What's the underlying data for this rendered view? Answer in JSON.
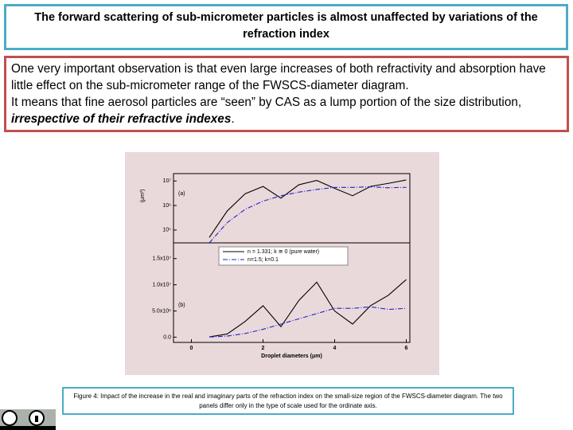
{
  "header": {
    "title": "The forward scattering of sub-micrometer particles is almost unaffected by variations of the refraction index"
  },
  "body": {
    "line1": "One very important observation is that even large increases of both refractivity and absorption have little effect on the sub-micrometer range of the FWSCS-diameter diagram.",
    "line2": "It means that fine aerosol particles are “seen” by CAS as a lump portion of the size distribution,",
    "emphasis": "irrespective of their refractive indexes",
    "end": "."
  },
  "figure": {
    "chart_data": {
      "type": "line",
      "x_label": "Droplet diameters (μm)",
      "y_label": "(μm²)",
      "x": [
        0.5,
        1,
        1.5,
        2,
        2.5,
        3,
        3.5,
        4,
        4.5,
        5,
        5.5,
        6
      ],
      "xlim": [
        -0.5,
        6.1
      ],
      "xticks": [
        0,
        2,
        4,
        6
      ],
      "series": [
        {
          "name": "n = 1.331; k ≅ 0 (pure water)",
          "color": "#000000",
          "dash": "none",
          "values": [
            50000,
            600000,
            3000000,
            6000000,
            2000000,
            7000000,
            10500000,
            5000000,
            2500000,
            6000000,
            8000000,
            11000000
          ]
        },
        {
          "name": "n=1.5; k=0.1",
          "color": "#2222cc",
          "dash": "6 2 1 2",
          "values": [
            30000,
            200000,
            700000,
            1500000,
            2500000,
            3500000,
            4500000,
            5500000,
            5500000,
            5800000,
            5300000,
            5500000
          ]
        }
      ],
      "panels": [
        {
          "label": "(a)",
          "log_scale": true,
          "ylim": [
            30000,
            20000000
          ],
          "yticks": [
            {
              "value": 100000,
              "label": "10⁵"
            },
            {
              "value": 1000000,
              "label": "10⁶"
            },
            {
              "value": 10000000,
              "label": "10⁷"
            }
          ]
        },
        {
          "label": "(b)",
          "log_scale": false,
          "ylim": [
            -1000000,
            18000000
          ],
          "yticks": [
            {
              "value": 0,
              "label": "0.0"
            },
            {
              "value": 5000000,
              "label": "5.0x10⁶"
            },
            {
              "value": 10000000,
              "label": "1.0x10⁷"
            },
            {
              "value": 15000000,
              "label": "1.5x10⁷"
            }
          ]
        }
      ]
    }
  },
  "caption": "Figure 4: Impact of the increase in the real and imaginary parts of the refraction index on the small-size region of the FWSCS-diameter diagram. The two panels differ only in the type of scale used for the ordinate axis."
}
